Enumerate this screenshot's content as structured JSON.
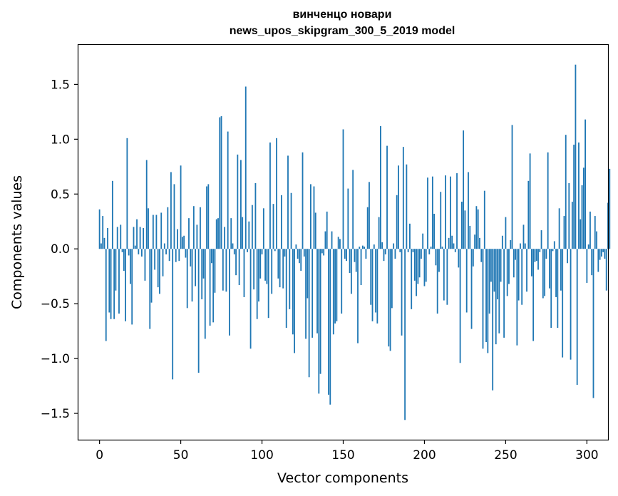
{
  "chart_data": {
    "type": "bar",
    "title_line1": "винченцо новари",
    "title_line2": "news_upos_skipgram_300_5_2019 model",
    "xlabel": "Vector components",
    "ylabel": "Components values",
    "xlim": [
      -13,
      313
    ],
    "ylim": [
      -1.74,
      1.86
    ],
    "xticks": [
      0,
      50,
      100,
      150,
      200,
      250,
      300
    ],
    "yticks": [
      1.5,
      1.0,
      0.5,
      0.0,
      -0.5,
      -1.0,
      -1.5
    ],
    "ytick_labels": [
      "1.5",
      "1.0",
      "0.5",
      "0.0",
      "−0.5",
      "−1.0",
      "−1.5"
    ],
    "color": "#1f77b4",
    "values": [
      0.36,
      0.05,
      0.3,
      0.1,
      -0.84,
      0.19,
      -0.58,
      -0.64,
      0.62,
      -0.64,
      -0.38,
      0.2,
      -0.59,
      0.22,
      -0.03,
      -0.2,
      -0.66,
      1.01,
      -0.06,
      -0.32,
      -0.69,
      0.2,
      0.03,
      0.27,
      -0.05,
      0.2,
      -0.07,
      0.19,
      -0.29,
      0.81,
      0.37,
      -0.73,
      -0.49,
      0.31,
      -0.19,
      0.31,
      -0.35,
      -0.41,
      0.33,
      -0.25,
      0.05,
      -0.05,
      0.38,
      -0.11,
      0.7,
      -1.19,
      0.59,
      -0.12,
      0.18,
      -0.11,
      0.76,
      0.11,
      0.12,
      -0.08,
      -0.54,
      0.28,
      -0.16,
      -0.48,
      0.39,
      -0.34,
      0.22,
      -1.13,
      0.38,
      -0.46,
      -0.27,
      -0.82,
      0.57,
      0.59,
      -0.7,
      -0.13,
      -0.67,
      -0.4,
      0.27,
      0.28,
      1.2,
      1.21,
      -0.38,
      0.2,
      -0.39,
      1.07,
      -0.79,
      0.28,
      0.05,
      -0.05,
      -0.24,
      0.86,
      -0.33,
      0.81,
      0.29,
      -0.44,
      1.48,
      -0.03,
      0.25,
      -0.91,
      0.4,
      -0.37,
      0.6,
      -0.64,
      -0.48,
      -0.27,
      -0.05,
      0.37,
      -0.29,
      -0.32,
      -0.63,
      0.97,
      -0.41,
      0.41,
      -0.02,
      1.01,
      -0.27,
      -0.35,
      0.49,
      -0.36,
      -0.07,
      -0.72,
      0.85,
      -0.55,
      0.51,
      -0.78,
      -0.95,
      0.04,
      -0.09,
      -0.13,
      -0.2,
      0.88,
      -0.07,
      -0.82,
      -0.45,
      -1.17,
      0.59,
      -0.81,
      0.57,
      0.33,
      -0.77,
      -1.32,
      -1.14,
      -0.04,
      -0.06,
      0.16,
      0.34,
      -1.33,
      -1.42,
      0.16,
      -0.78,
      -0.68,
      -0.66,
      0.11,
      0.09,
      -0.59,
      1.09,
      -0.09,
      -0.11,
      0.55,
      -0.22,
      -0.41,
      0.72,
      -0.12,
      -0.21,
      -0.86,
      0.02,
      -0.33,
      0.03,
      0.02,
      -0.09,
      0.38,
      0.61,
      -0.51,
      -0.66,
      0.04,
      -0.58,
      -0.68,
      0.29,
      1.12,
      0.06,
      -0.11,
      -0.05,
      0.94,
      -0.89,
      -0.93,
      -0.54,
      0.05,
      -0.09,
      0.49,
      0.76,
      -0.03,
      -0.79,
      0.93,
      -1.56,
      0.77,
      -0.03,
      0.23,
      -0.55,
      -0.03,
      -0.29,
      -0.43,
      -0.32,
      -0.26,
      -0.09,
      0.14,
      -0.34,
      -0.3,
      0.65,
      -0.05,
      0.02,
      0.66,
      0.32,
      -0.15,
      -0.59,
      -0.21,
      0.52,
      0.02,
      -0.47,
      0.67,
      -0.51,
      0.1,
      0.66,
      0.12,
      0.05,
      -0.03,
      0.69,
      -0.17,
      -1.04,
      0.43,
      1.08,
      0.35,
      -0.58,
      0.7,
      0.21,
      -0.73,
      -0.16,
      0.13,
      0.39,
      0.36,
      0.1,
      -0.12,
      -0.91,
      0.53,
      -0.85,
      -0.95,
      -0.59,
      -0.3,
      -1.29,
      -0.39,
      -0.87,
      -0.46,
      -0.77,
      -0.3,
      0.12,
      -0.81,
      0.29,
      -0.43,
      -0.32,
      0.08,
      1.13,
      -0.26,
      -0.1,
      -0.88,
      -0.47,
      0.05,
      -0.51,
      0.22,
      0.05,
      -0.39,
      0.62,
      0.87,
      -0.25,
      -0.84,
      -0.12,
      -0.11,
      -0.19,
      -0.03,
      0.17,
      -0.45,
      -0.43,
      -0.09,
      0.88,
      -0.36,
      -0.72,
      -0.02,
      0.07,
      -0.44,
      -0.72,
      0.37,
      -0.38,
      -0.99,
      0.3,
      1.04,
      -0.13,
      0.6,
      -1.01,
      0.43,
      0.95,
      1.68,
      -1.24,
      0.97,
      0.27,
      0.58,
      0.74,
      1.18,
      -0.31,
      0.04,
      0.34,
      -0.24,
      -1.36,
      0.3,
      0.16,
      -0.21,
      -0.1,
      -0.07,
      -0.03,
      -0.09,
      -0.38,
      0.42,
      0.73
    ]
  }
}
